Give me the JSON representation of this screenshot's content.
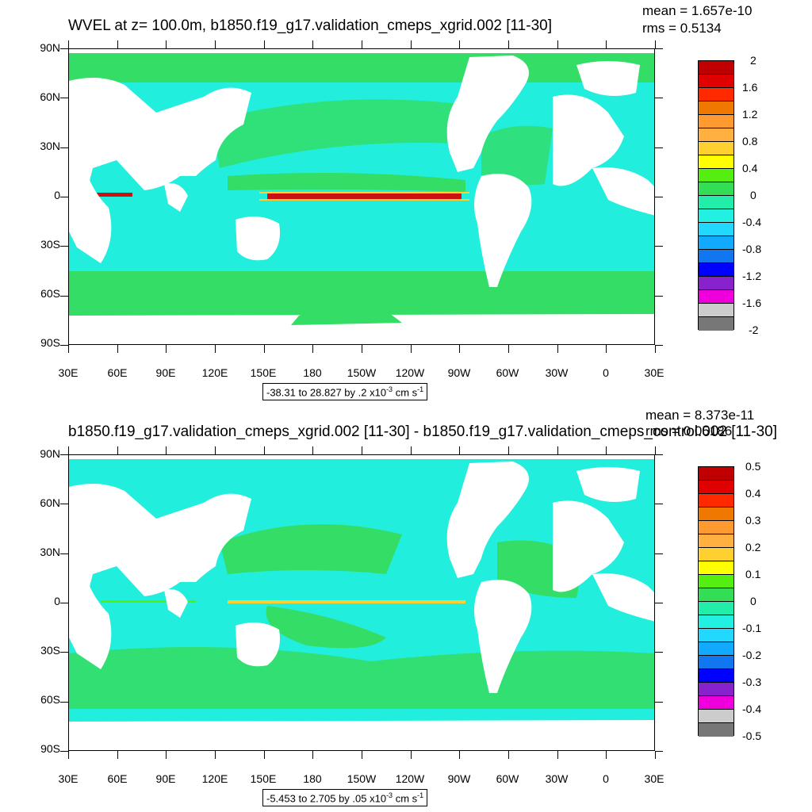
{
  "top": {
    "title": "WVEL at z= 100.0m, b1850.f19_g17.validation_cmeps_xgrid.002 [11-30]",
    "mean": "mean = 1.657e-10",
    "rms": "rms = 0.5134",
    "range_text": "-38.31 to 28.827 by .2 x10",
    "range_exp": "-3",
    "range_unit": " cm s",
    "range_unit_exp": "-1",
    "colorbar_labels": [
      "2",
      "1.6",
      "1.2",
      "0.8",
      "0.4",
      "0",
      "-0.4",
      "-0.8",
      "-1.2",
      "-1.6",
      "-2"
    ]
  },
  "bottom": {
    "title": "b1850.f19_g17.validation_cmeps_xgrid.002 [11-30] - b1850.f19_g17.validation_cmeps_control.002 [11-30]",
    "mean": "mean = 8.373e-11",
    "rms": "rms = 0.05186",
    "range_text": "-5.453 to 2.705 by .05 x10",
    "range_exp": "-3",
    "range_unit": " cm s",
    "range_unit_exp": "-1",
    "colorbar_labels": [
      "0.5",
      "0.4",
      "0.3",
      "0.2",
      "0.1",
      "0",
      "-0.1",
      "-0.2",
      "-0.3",
      "-0.4",
      "-0.5"
    ]
  },
  "axes": {
    "lat_labels": [
      "90N",
      "60N",
      "30N",
      "0",
      "30S",
      "60S",
      "90S"
    ],
    "lon_labels": [
      "30E",
      "60E",
      "90E",
      "120E",
      "150E",
      "180",
      "150W",
      "120W",
      "90W",
      "60W",
      "30W",
      "0",
      "30E"
    ]
  },
  "colors": {
    "ocean_main": "#22eedd",
    "ocean_green": "#33dd66",
    "land": "#ffffff",
    "equatorial_core": "#cc1111",
    "colorbar": [
      "#c00000",
      "#e00000",
      "#ff2a00",
      "#f07800",
      "#ff9a30",
      "#ffb040",
      "#ffd030",
      "#ffff00",
      "#55ee11",
      "#33dd55",
      "#22eeaa",
      "#22f0e0",
      "#22d8ff",
      "#11aaff",
      "#1177ee",
      "#0000ff",
      "#8822cc",
      "#ee00dd",
      "#cccccc",
      "#777777"
    ]
  }
}
